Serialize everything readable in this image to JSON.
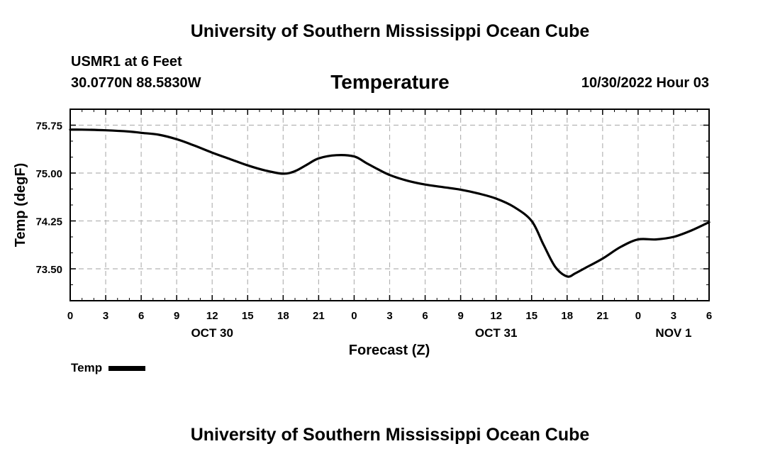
{
  "header": {
    "title": "University of Southern Mississippi Ocean Cube",
    "station": "USMR1 at 6 Feet",
    "coordinates": "30.0770N  88.5830W",
    "date": "10/30/2022 Hour 03"
  },
  "footer": {
    "title": "University of Southern Mississippi Ocean Cube"
  },
  "legend": {
    "label": "Temp"
  },
  "chart_data": {
    "type": "line",
    "title": "Temperature",
    "xlabel": "Forecast (Z)",
    "ylabel": "Temp (degF)",
    "xlim": [
      0,
      54
    ],
    "ylim": [
      73.0,
      76.0
    ],
    "grid": true,
    "x_ticks": [
      0,
      3,
      6,
      9,
      12,
      15,
      18,
      21,
      24,
      27,
      30,
      33,
      36,
      39,
      42,
      45,
      48,
      51,
      54
    ],
    "x_tick_labels": [
      "0",
      "3",
      "6",
      "9",
      "12",
      "15",
      "18",
      "21",
      "0",
      "3",
      "6",
      "9",
      "12",
      "15",
      "18",
      "21",
      "0",
      "3",
      "6"
    ],
    "y_ticks": [
      73.5,
      74.25,
      75.0,
      75.75
    ],
    "y_tick_labels": [
      "73.50",
      "74.25",
      "75.00",
      "75.75"
    ],
    "day_labels": [
      {
        "x": 12,
        "label": "OCT 30"
      },
      {
        "x": 36,
        "label": "OCT 31"
      },
      {
        "x": 51,
        "label": "NOV 1"
      }
    ],
    "series": [
      {
        "name": "Temp",
        "color": "#000000",
        "x": [
          0,
          1,
          3,
          5,
          6,
          7.5,
          9,
          10.5,
          12,
          13.5,
          15,
          16.5,
          18,
          19,
          20,
          21,
          22.5,
          24,
          25,
          26,
          27,
          28.5,
          30,
          31.5,
          33,
          34.5,
          36,
          37.5,
          39,
          40,
          41,
          42,
          42.7,
          43.5,
          45,
          46.5,
          48,
          49.5,
          51,
          52.5,
          54
        ],
        "values": [
          75.68,
          75.68,
          75.67,
          75.65,
          75.63,
          75.6,
          75.53,
          75.43,
          75.32,
          75.22,
          75.12,
          75.04,
          74.99,
          75.03,
          75.13,
          75.23,
          75.28,
          75.26,
          75.16,
          75.06,
          74.97,
          74.88,
          74.82,
          74.78,
          74.74,
          74.68,
          74.6,
          74.47,
          74.25,
          73.88,
          73.53,
          73.38,
          73.43,
          73.51,
          73.66,
          73.84,
          73.96,
          73.96,
          74.0,
          74.1,
          74.23
        ]
      }
    ]
  }
}
